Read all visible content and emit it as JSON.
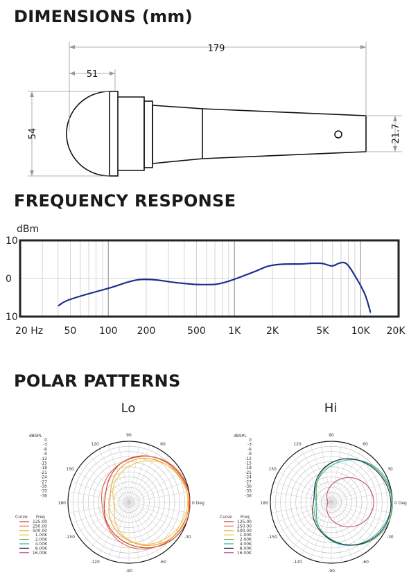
{
  "sections": {
    "dimensions": "DIMENSIONS (mm)",
    "frequency": "FREQUENCY RESPONSE",
    "polar": "POLAR PATTERNS"
  },
  "dimensions": {
    "length": "179",
    "head_width": "51",
    "head_height": "54",
    "tail_diameter": "21.7"
  },
  "chart_data": [
    {
      "type": "line",
      "title": "",
      "ylabel": "dBm",
      "xscale": "log",
      "xlim": [
        20,
        20000
      ],
      "ylim": [
        -10,
        10
      ],
      "grid": true,
      "x_tick_labels": [
        "20 Hz",
        "50",
        "100",
        "200",
        "500",
        "1K",
        "2K",
        "5K",
        "10K",
        "20K"
      ],
      "x_tick_values": [
        20,
        50,
        100,
        200,
        500,
        1000,
        2000,
        5000,
        10000,
        20000
      ],
      "y_tick_labels": [
        "10",
        "0",
        "10"
      ],
      "y_tick_values": [
        10,
        0,
        -10
      ],
      "line_color": "#1a2f8f",
      "series": [
        {
          "x": [
            40,
            45,
            55,
            70,
            90,
            110,
            140,
            170,
            200,
            250,
            320,
            400,
            500,
            600,
            700,
            850,
            1000,
            1200,
            1500,
            1800,
            2100,
            2500,
            3000,
            3500,
            4000,
            4500,
            5000,
            5500,
            6000,
            6500,
            7000,
            7500,
            8000,
            9000,
            10000,
            11000,
            12000
          ],
          "y": [
            -7.2,
            -6,
            -5,
            -4,
            -3,
            -2.2,
            -1,
            -0.3,
            -0.2,
            -0.4,
            -1,
            -1.3,
            -1.6,
            -1.6,
            -1.6,
            -1,
            -0.2,
            0.8,
            2,
            3.2,
            3.6,
            3.8,
            3.8,
            3.8,
            4,
            4,
            4,
            3.5,
            3.2,
            3.8,
            4.2,
            4.2,
            3.5,
            0.8,
            -1.8,
            -4.5,
            -9
          ]
        }
      ]
    },
    {
      "type": "polar",
      "title": "Lo",
      "angle_labels": [
        "90",
        "60",
        "0 Deg",
        "-30",
        "-60",
        "-90",
        "-120",
        "-150",
        "180",
        "150",
        "120"
      ],
      "radial_axis_title": "dBSPL",
      "radial_ticks": [
        "0",
        "-3",
        "-6",
        "-9",
        "-12",
        "-15",
        "-18",
        "-21",
        "-24",
        "-27",
        "-30",
        "-33",
        "-36"
      ],
      "legend_headers": [
        "Curve",
        "Freq"
      ],
      "series": [
        {
          "name": "125.00",
          "color": "#c0392b",
          "pattern": "cardioid",
          "rear_db": -24
        },
        {
          "name": "250.00",
          "color": "#e8623a",
          "pattern": "cardioid",
          "rear_db": -22
        },
        {
          "name": "500.00",
          "color": "#f0a030",
          "pattern": "cardioid",
          "rear_db": -27
        },
        {
          "name": "1.00K",
          "color": "#f4c542",
          "pattern": "cardioid",
          "rear_db": -30
        }
      ],
      "legend": [
        {
          "name": "125.00",
          "color": "#c0392b"
        },
        {
          "name": "250.00",
          "color": "#e8623a"
        },
        {
          "name": "500.00",
          "color": "#f0a030"
        },
        {
          "name": "1.00K",
          "color": "#f4c542"
        },
        {
          "name": "2.00K",
          "color": "#6ab04c"
        },
        {
          "name": "4.00K",
          "color": "#2bb5a6"
        },
        {
          "name": "8.00K",
          "color": "#1f2a44"
        },
        {
          "name": "16.00K",
          "color": "#c04a8a"
        }
      ]
    },
    {
      "type": "polar",
      "title": "Hi",
      "angle_labels": [
        "90",
        "60",
        "30",
        "0 Deg",
        "-30",
        "-60",
        "-90",
        "-120",
        "-150",
        "180",
        "150",
        "120"
      ],
      "radial_axis_title": "dBSPL",
      "radial_ticks": [
        "0",
        "-3",
        "-6",
        "-9",
        "-12",
        "-15",
        "-18",
        "-21",
        "-24",
        "-27",
        "-30",
        "-33",
        "-36"
      ],
      "legend_headers": [
        "Curve",
        "Freq"
      ],
      "series": [
        {
          "name": "2.00K",
          "color": "#6ab04c",
          "pattern": "cardioid",
          "rear_db": -30
        },
        {
          "name": "4.00K",
          "color": "#2bb5a6",
          "pattern": "cardioid",
          "rear_db": -30
        },
        {
          "name": "8.00K",
          "color": "#1f2a44",
          "pattern": "cardioid",
          "rear_db": -28
        },
        {
          "name": "16.00K",
          "color": "#c04a8a",
          "pattern": "cardioid-narrow",
          "rear_db": -33
        }
      ],
      "legend": [
        {
          "name": "125.00",
          "color": "#c0392b"
        },
        {
          "name": "250.00",
          "color": "#e8623a"
        },
        {
          "name": "500.00",
          "color": "#f0a030"
        },
        {
          "name": "1.00K",
          "color": "#f4c542"
        },
        {
          "name": "2.00K",
          "color": "#6ab04c"
        },
        {
          "name": "4.00K",
          "color": "#2bb5a6"
        },
        {
          "name": "8.00K",
          "color": "#1f2a44"
        },
        {
          "name": "16.00K",
          "color": "#c04a8a"
        }
      ]
    }
  ]
}
